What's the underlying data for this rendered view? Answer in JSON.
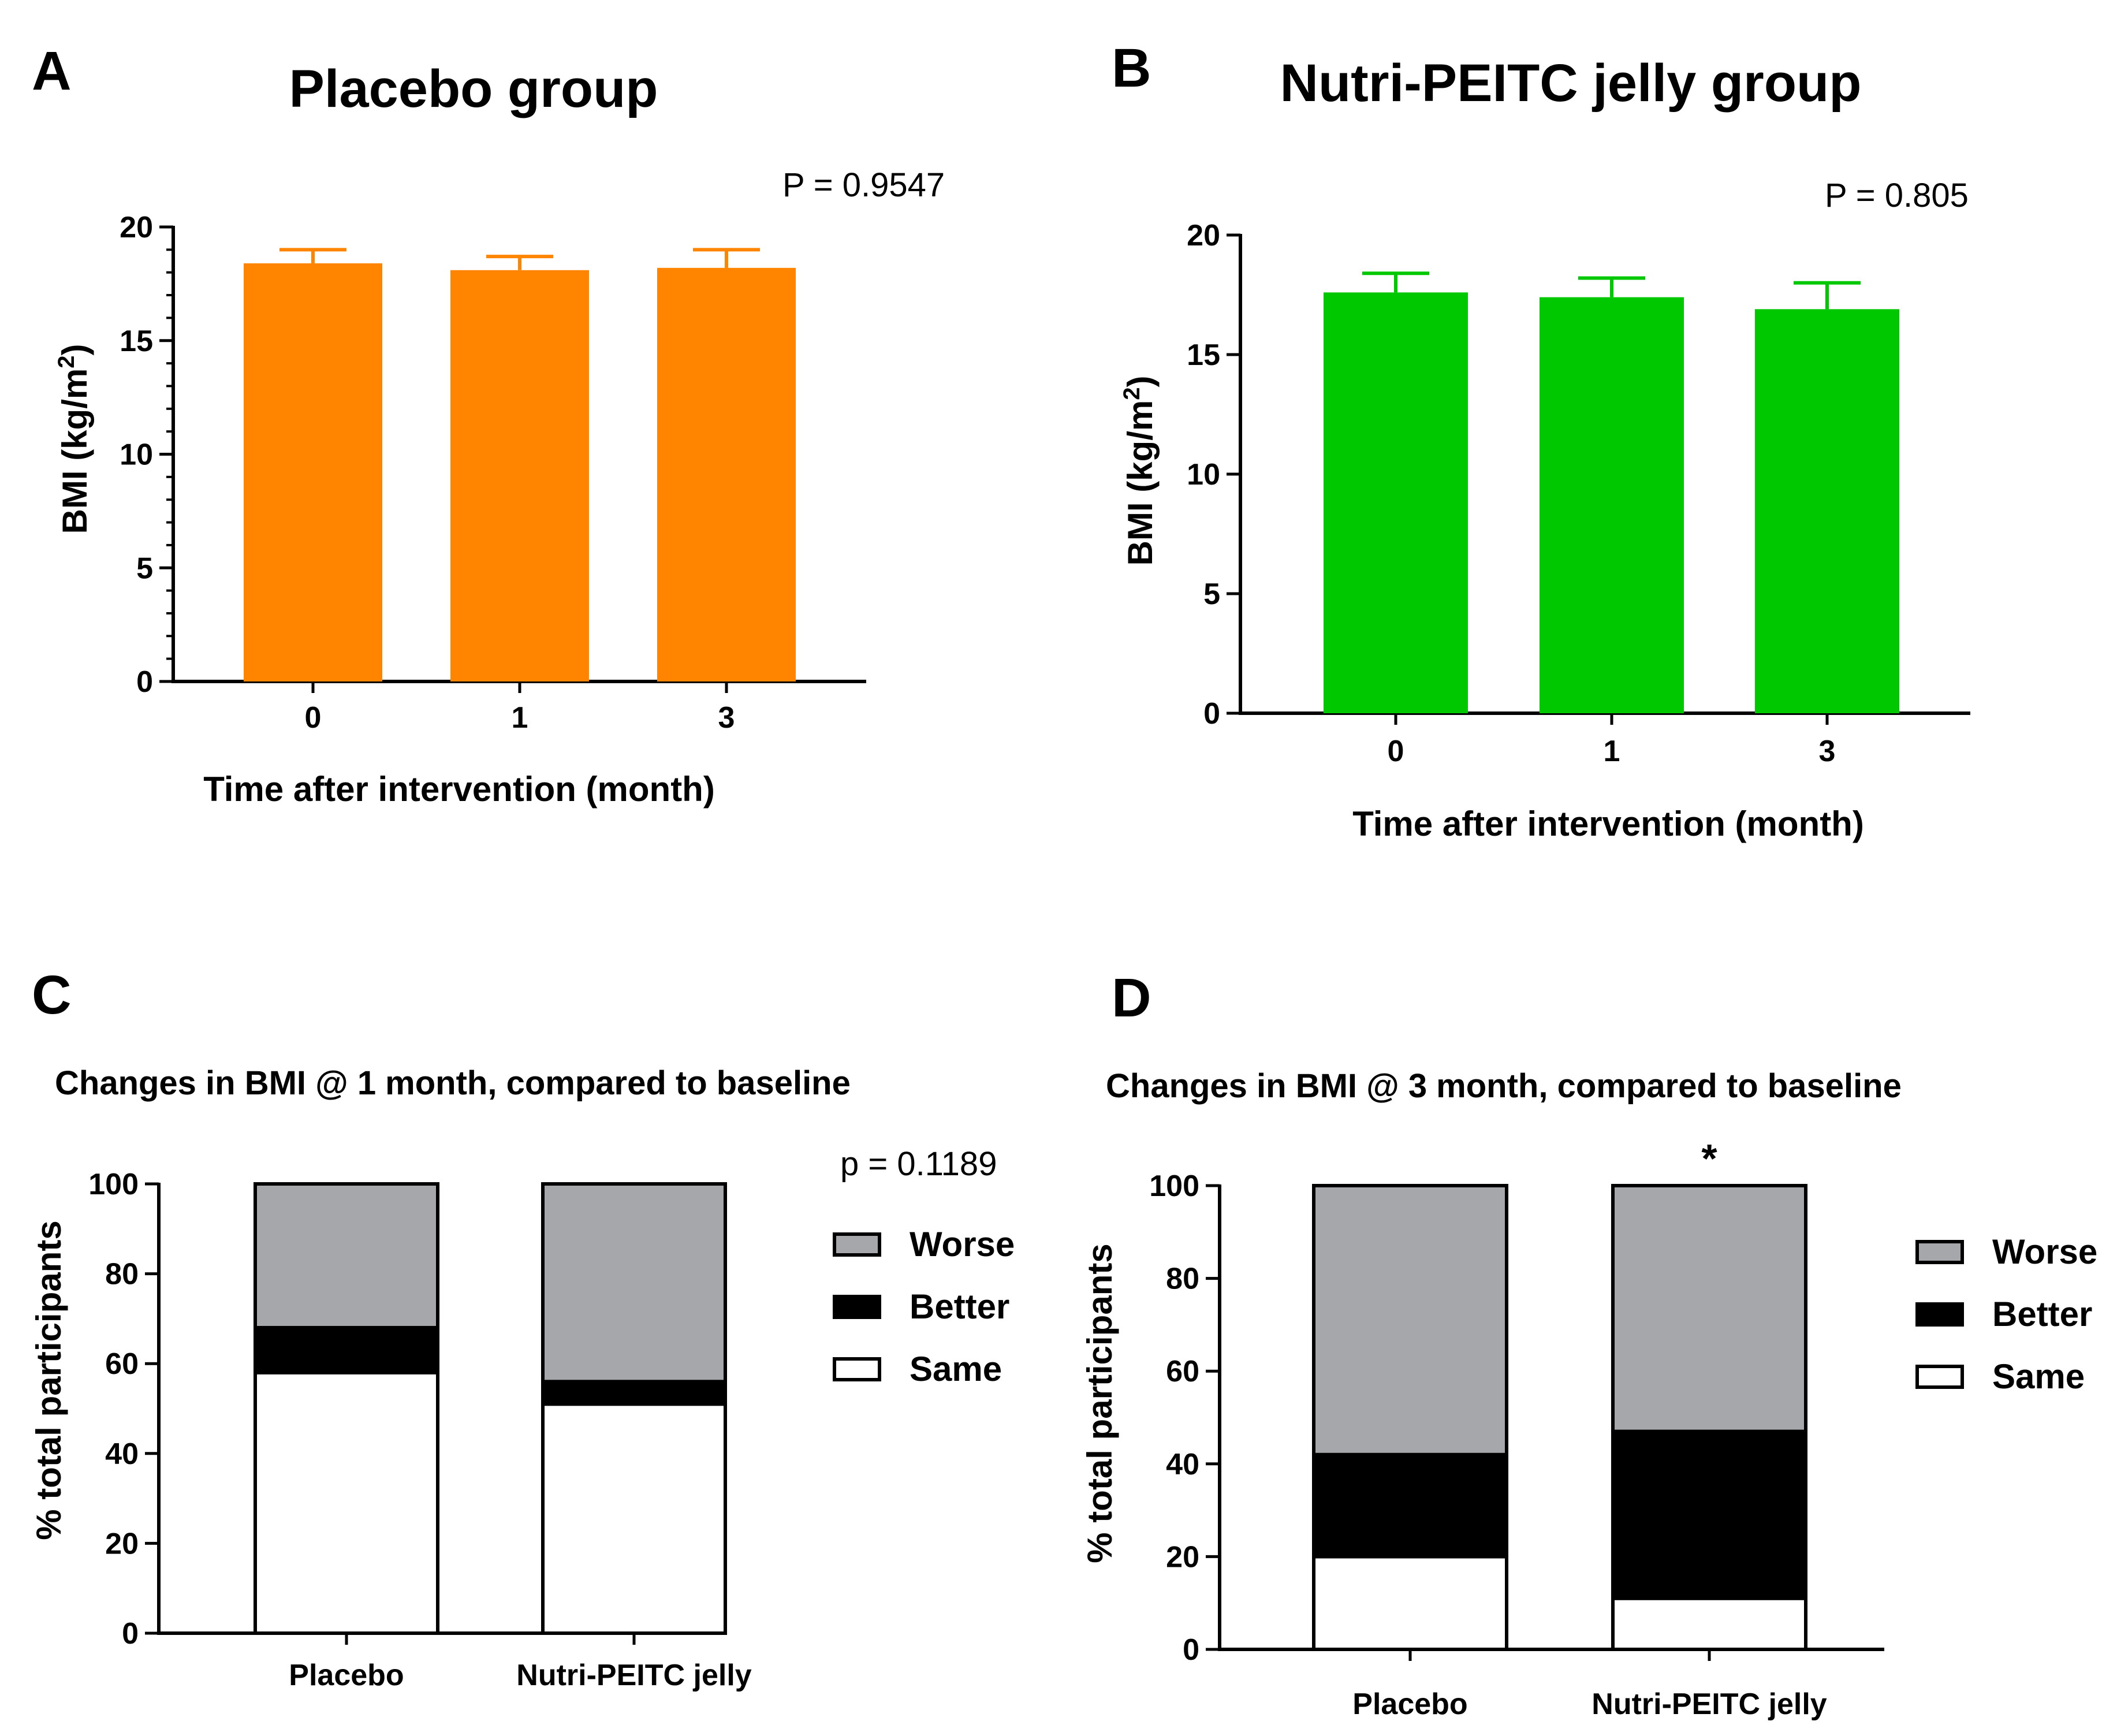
{
  "colors": {
    "placebo_bar": "#ff8500",
    "jelly_bar": "#00c800",
    "worse": "#a6a7ab",
    "better": "#000000",
    "same": "#ffffff",
    "axis": "#000000"
  },
  "chart_data": [
    {
      "id": "A",
      "type": "bar",
      "panel_label": "A",
      "title": "Placebo group",
      "categories": [
        "0",
        "1",
        "3"
      ],
      "values": [
        18.4,
        18.1,
        18.2
      ],
      "errors": [
        0.6,
        0.6,
        0.8
      ],
      "ylim": [
        0,
        20
      ],
      "yticks": [
        "0",
        "5",
        "10",
        "15",
        "20"
      ],
      "ylabel": "BMI (kg/m²)",
      "xlabel": "Time after intervention (month)",
      "annotation": "P = 0.9547",
      "color": "#ff8500"
    },
    {
      "id": "B",
      "type": "bar",
      "panel_label": "B",
      "title": "Nutri-PEITC jelly group",
      "categories": [
        "0",
        "1",
        "3"
      ],
      "values": [
        17.6,
        17.4,
        16.9
      ],
      "errors": [
        0.8,
        0.8,
        1.1
      ],
      "ylim": [
        0,
        20
      ],
      "yticks": [
        "0",
        "5",
        "10",
        "15",
        "20"
      ],
      "ylabel": "BMI (kg/m²)",
      "xlabel": "Time after intervention (month)",
      "annotation": "P = 0.805",
      "color": "#00c800"
    },
    {
      "id": "C",
      "type": "bar",
      "stacked": true,
      "panel_label": "C",
      "title": "Changes in BMI @ 1 month, compared to baseline",
      "categories": [
        "Placebo",
        "Nutri-PEITC jelly"
      ],
      "series": [
        {
          "name": "Same",
          "values": [
            58,
            51
          ]
        },
        {
          "name": "Better",
          "values": [
            10,
            5
          ]
        },
        {
          "name": "Worse",
          "values": [
            32,
            44
          ]
        }
      ],
      "ylim": [
        0,
        100
      ],
      "yticks": [
        "0",
        "20",
        "40",
        "60",
        "80",
        "100"
      ],
      "ylabel": "% total participants",
      "legend": [
        "Worse",
        "Better",
        "Same"
      ],
      "annotation": "p = 0.1189"
    },
    {
      "id": "D",
      "type": "bar",
      "stacked": true,
      "panel_label": "D",
      "title": "Changes in BMI @ 3 month, compared to baseline",
      "categories": [
        "Placebo",
        "Nutri-PEITC jelly"
      ],
      "series": [
        {
          "name": "Same",
          "values": [
            20,
            11
          ]
        },
        {
          "name": "Better",
          "values": [
            22,
            36
          ]
        },
        {
          "name": "Worse",
          "values": [
            58,
            53
          ]
        }
      ],
      "ylim": [
        0,
        100
      ],
      "yticks": [
        "0",
        "20",
        "40",
        "60",
        "80",
        "100"
      ],
      "ylabel": "% total participants",
      "legend": [
        "Worse",
        "Better",
        "Same"
      ],
      "annotation": "*"
    }
  ]
}
